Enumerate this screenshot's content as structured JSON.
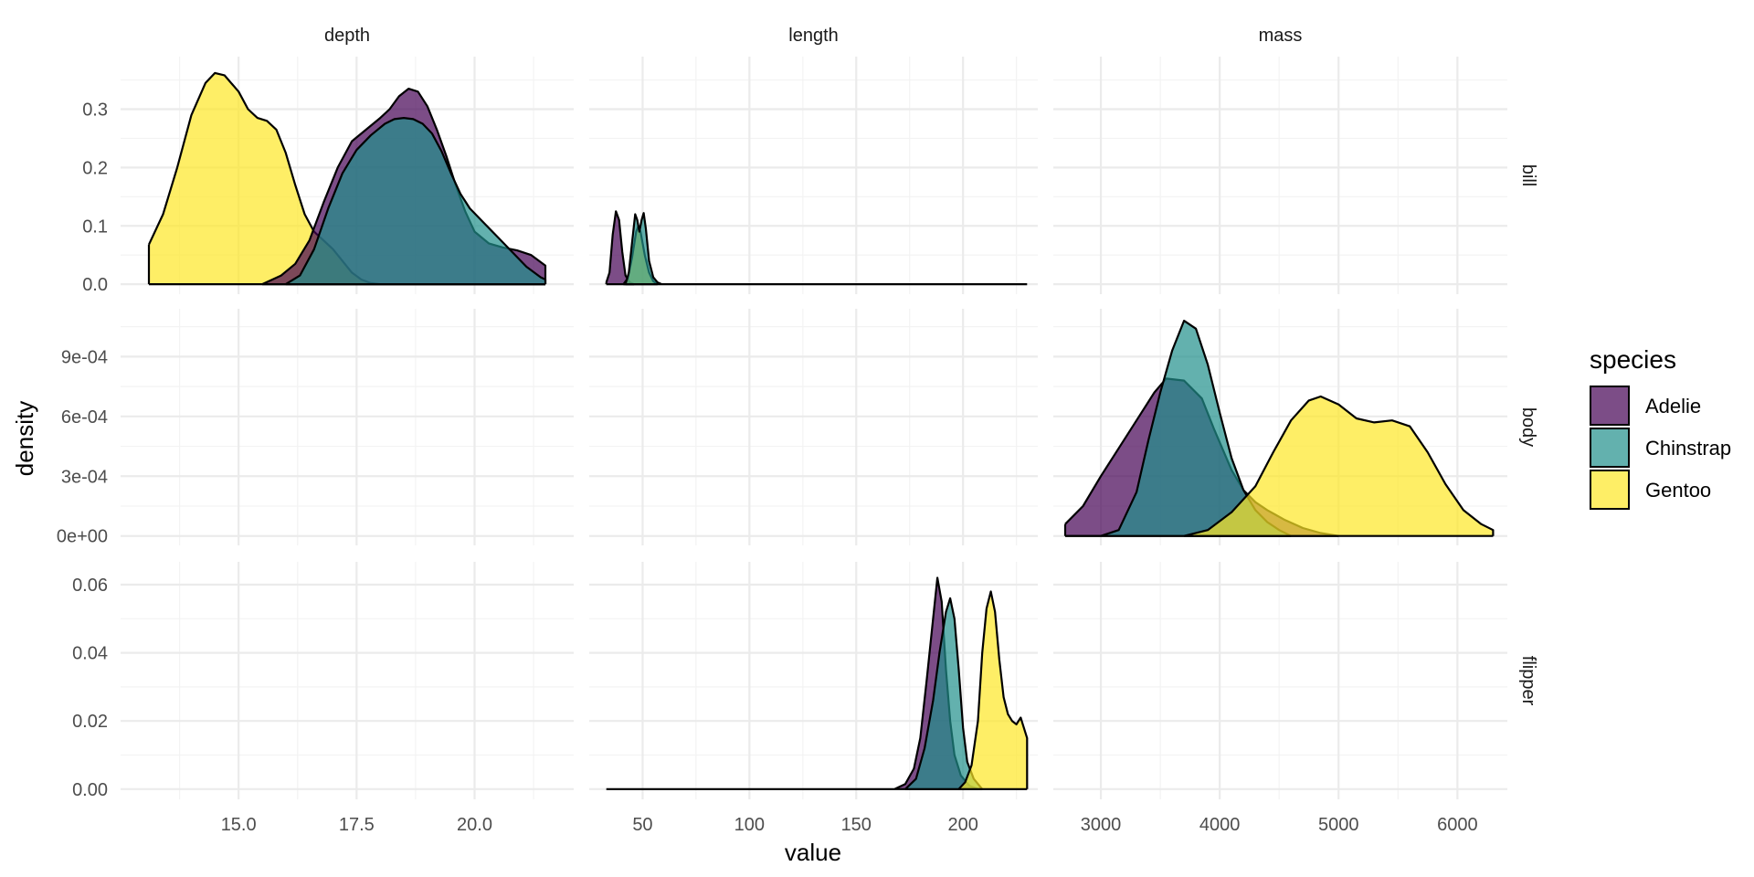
{
  "chart_data": {
    "type": "area",
    "subtype": "faceted density plot",
    "xlabel": "value",
    "ylabel": "density",
    "facet_columns": [
      "depth",
      "length",
      "mass"
    ],
    "facet_rows": [
      "bill",
      "body",
      "flipper"
    ],
    "colors": {
      "Adelie": "#440154",
      "Chinstrap": "#21908C",
      "Gentoo": "#FDE725"
    },
    "fill_alpha": 0.7,
    "x_axes": {
      "depth": {
        "range": [
          12.5,
          22.1
        ],
        "ticks": [
          15.0,
          17.5,
          20.0
        ],
        "tick_labels": [
          "15.0",
          "17.5",
          "20.0"
        ]
      },
      "length": {
        "range": [
          25,
          235
        ],
        "ticks": [
          50,
          100,
          150,
          200
        ],
        "tick_labels": [
          "50",
          "100",
          "150",
          "200"
        ]
      },
      "mass": {
        "range": [
          2600,
          6420
        ],
        "ticks": [
          3000,
          4000,
          5000,
          6000
        ],
        "tick_labels": [
          "3000",
          "4000",
          "5000",
          "6000"
        ]
      }
    },
    "y_axes": {
      "bill": {
        "range": [
          -0.017,
          0.39
        ],
        "ticks": [
          0,
          0.1,
          0.2,
          0.3
        ],
        "tick_labels": [
          "0.0",
          "0.1",
          "0.2",
          "0.3"
        ]
      },
      "body": {
        "range": [
          -4.7e-05,
          0.00114
        ],
        "ticks": [
          0,
          0.0003,
          0.0006,
          0.0009
        ],
        "tick_labels": [
          "0e+00",
          "3e-04",
          "6e-04",
          "9e-04"
        ]
      },
      "flipper": {
        "range": [
          -0.003,
          0.0667
        ],
        "ticks": [
          0,
          0.02,
          0.04,
          0.06
        ],
        "tick_labels": [
          "0.00",
          "0.02",
          "0.04",
          "0.06"
        ]
      }
    },
    "panels": [
      {
        "row": "bill",
        "col": "depth",
        "series": [
          {
            "name": "Gentoo",
            "points": [
              [
                13.1,
                0.068
              ],
              [
                13.4,
                0.12
              ],
              [
                13.7,
                0.2
              ],
              [
                14.0,
                0.29
              ],
              [
                14.3,
                0.345
              ],
              [
                14.5,
                0.362
              ],
              [
                14.7,
                0.358
              ],
              [
                15.0,
                0.33
              ],
              [
                15.2,
                0.3
              ],
              [
                15.4,
                0.285
              ],
              [
                15.6,
                0.28
              ],
              [
                15.8,
                0.265
              ],
              [
                16.0,
                0.225
              ],
              [
                16.2,
                0.17
              ],
              [
                16.4,
                0.12
              ],
              [
                16.6,
                0.09
              ],
              [
                16.8,
                0.075
              ],
              [
                17.0,
                0.06
              ],
              [
                17.2,
                0.04
              ],
              [
                17.4,
                0.02
              ],
              [
                17.6,
                0.008
              ],
              [
                17.8,
                0.002
              ],
              [
                18.0,
                0.0
              ],
              [
                19.0,
                0.0
              ],
              [
                20.0,
                0.0
              ],
              [
                21.5,
                0.0
              ]
            ]
          },
          {
            "name": "Adelie",
            "points": [
              [
                15.5,
                0.0
              ],
              [
                15.9,
                0.015
              ],
              [
                16.2,
                0.035
              ],
              [
                16.5,
                0.075
              ],
              [
                16.8,
                0.14
              ],
              [
                17.1,
                0.2
              ],
              [
                17.4,
                0.245
              ],
              [
                17.7,
                0.265
              ],
              [
                18.0,
                0.285
              ],
              [
                18.2,
                0.3
              ],
              [
                18.4,
                0.322
              ],
              [
                18.6,
                0.335
              ],
              [
                18.8,
                0.33
              ],
              [
                19.0,
                0.305
              ],
              [
                19.2,
                0.265
              ],
              [
                19.4,
                0.22
              ],
              [
                19.6,
                0.17
              ],
              [
                19.8,
                0.125
              ],
              [
                20.0,
                0.09
              ],
              [
                20.3,
                0.07
              ],
              [
                20.6,
                0.063
              ],
              [
                20.9,
                0.058
              ],
              [
                21.2,
                0.05
              ],
              [
                21.5,
                0.032
              ]
            ]
          },
          {
            "name": "Chinstrap",
            "points": [
              [
                16.0,
                0.0
              ],
              [
                16.3,
                0.015
              ],
              [
                16.6,
                0.06
              ],
              [
                16.9,
                0.13
              ],
              [
                17.2,
                0.19
              ],
              [
                17.5,
                0.23
              ],
              [
                17.8,
                0.255
              ],
              [
                18.1,
                0.275
              ],
              [
                18.3,
                0.283
              ],
              [
                18.5,
                0.285
              ],
              [
                18.7,
                0.283
              ],
              [
                18.9,
                0.275
              ],
              [
                19.1,
                0.258
              ],
              [
                19.3,
                0.228
              ],
              [
                19.5,
                0.19
              ],
              [
                19.7,
                0.155
              ],
              [
                19.9,
                0.13
              ],
              [
                20.2,
                0.105
              ],
              [
                20.5,
                0.08
              ],
              [
                20.8,
                0.055
              ],
              [
                21.1,
                0.03
              ],
              [
                21.4,
                0.012
              ],
              [
                21.5,
                0.008
              ]
            ]
          }
        ]
      },
      {
        "row": "bill",
        "col": "length",
        "series": [
          {
            "name": "Adelie",
            "points": [
              [
                33,
                0.003
              ],
              [
                34.5,
                0.02
              ],
              [
                36,
                0.085
              ],
              [
                37.5,
                0.125
              ],
              [
                39,
                0.11
              ],
              [
                40.5,
                0.055
              ],
              [
                42,
                0.015
              ],
              [
                44,
                0.003
              ],
              [
                46,
                0.0
              ]
            ]
          },
          {
            "name": "Gentoo",
            "points": [
              [
                41,
                0.0
              ],
              [
                43,
                0.01
              ],
              [
                45,
                0.045
              ],
              [
                47,
                0.09
              ],
              [
                48,
                0.1
              ],
              [
                49,
                0.09
              ],
              [
                51,
                0.05
              ],
              [
                53,
                0.02
              ],
              [
                55,
                0.005
              ],
              [
                57,
                0.0
              ]
            ]
          },
          {
            "name": "Chinstrap",
            "points": [
              [
                42,
                0.0
              ],
              [
                43.5,
                0.02
              ],
              [
                45,
                0.07
              ],
              [
                46.5,
                0.12
              ],
              [
                47.5,
                0.11
              ],
              [
                48.5,
                0.09
              ],
              [
                49.5,
                0.11
              ],
              [
                50.5,
                0.122
              ],
              [
                51.5,
                0.095
              ],
              [
                53,
                0.04
              ],
              [
                55,
                0.012
              ],
              [
                57,
                0.003
              ],
              [
                59,
                0.0
              ],
              [
                230,
                0.0
              ]
            ]
          }
        ]
      },
      {
        "row": "body",
        "col": "mass",
        "series": [
          {
            "name": "Adelie",
            "points": [
              [
                2700,
                6e-05
              ],
              [
                2850,
                0.00015
              ],
              [
                3000,
                0.0003
              ],
              [
                3150,
                0.00044
              ],
              [
                3300,
                0.00058
              ],
              [
                3450,
                0.00072
              ],
              [
                3550,
                0.00079
              ],
              [
                3700,
                0.00078
              ],
              [
                3850,
                0.00069
              ],
              [
                3950,
                0.00054
              ],
              [
                4100,
                0.00033
              ],
              [
                4200,
                0.00023
              ],
              [
                4300,
                0.00017
              ],
              [
                4400,
                0.00013
              ],
              [
                4550,
                8e-05
              ],
              [
                4700,
                4e-05
              ],
              [
                4850,
                1.5e-05
              ],
              [
                5000,
                0.0
              ]
            ]
          },
          {
            "name": "Chinstrap",
            "points": [
              [
                2700,
                0.0
              ],
              [
                3000,
                0.0
              ],
              [
                3150,
                3e-05
              ],
              [
                3300,
                0.00022
              ],
              [
                3400,
                0.00048
              ],
              [
                3500,
                0.00072
              ],
              [
                3600,
                0.00093
              ],
              [
                3700,
                0.00108
              ],
              [
                3800,
                0.00104
              ],
              [
                3900,
                0.00086
              ],
              [
                4000,
                0.00062
              ],
              [
                4100,
                0.00039
              ],
              [
                4200,
                0.00023
              ],
              [
                4300,
                0.00013
              ],
              [
                4400,
                7e-05
              ],
              [
                4500,
                3e-05
              ],
              [
                4600,
                0.0
              ]
            ]
          },
          {
            "name": "Gentoo",
            "points": [
              [
                3700,
                0.0
              ],
              [
                3900,
                3e-05
              ],
              [
                4100,
                0.00012
              ],
              [
                4300,
                0.00025
              ],
              [
                4450,
                0.00042
              ],
              [
                4600,
                0.00058
              ],
              [
                4750,
                0.00068
              ],
              [
                4850,
                0.0007
              ],
              [
                5000,
                0.00066
              ],
              [
                5150,
                0.00059
              ],
              [
                5300,
                0.00057
              ],
              [
                5450,
                0.00058
              ],
              [
                5600,
                0.00055
              ],
              [
                5750,
                0.00042
              ],
              [
                5900,
                0.00026
              ],
              [
                6050,
                0.00013
              ],
              [
                6200,
                6e-05
              ],
              [
                6300,
                3e-05
              ]
            ]
          }
        ]
      },
      {
        "row": "flipper",
        "col": "length",
        "series": [
          {
            "name": "Adelie",
            "points": [
              [
                33,
                0.0
              ],
              [
                150,
                0.0
              ],
              [
                168,
                0.0
              ],
              [
                173,
                0.0015
              ],
              [
                177,
                0.006
              ],
              [
                180,
                0.015
              ],
              [
                183,
                0.032
              ],
              [
                186,
                0.05
              ],
              [
                188,
                0.062
              ],
              [
                190,
                0.055
              ],
              [
                192,
                0.035
              ],
              [
                194,
                0.02
              ],
              [
                196,
                0.01
              ],
              [
                199,
                0.004
              ],
              [
                203,
                0.001
              ],
              [
                207,
                0.0
              ]
            ]
          },
          {
            "name": "Chinstrap",
            "points": [
              [
                173,
                0.0
              ],
              [
                178,
                0.003
              ],
              [
                182,
                0.012
              ],
              [
                186,
                0.026
              ],
              [
                189,
                0.04
              ],
              [
                192,
                0.052
              ],
              [
                194,
                0.056
              ],
              [
                196,
                0.05
              ],
              [
                198,
                0.035
              ],
              [
                200,
                0.018
              ],
              [
                202,
                0.008
              ],
              [
                205,
                0.003
              ],
              [
                209,
                0.0
              ]
            ]
          },
          {
            "name": "Gentoo",
            "points": [
              [
                198,
                0.0
              ],
              [
                201,
                0.002
              ],
              [
                204,
                0.007
              ],
              [
                207,
                0.02
              ],
              [
                209,
                0.04
              ],
              [
                211,
                0.053
              ],
              [
                213,
                0.058
              ],
              [
                215,
                0.052
              ],
              [
                217,
                0.038
              ],
              [
                219,
                0.027
              ],
              [
                221,
                0.022
              ],
              [
                223,
                0.02
              ],
              [
                225,
                0.019
              ],
              [
                227,
                0.021
              ],
              [
                228,
                0.019
              ],
              [
                230,
                0.015
              ]
            ]
          }
        ]
      }
    ],
    "legend": {
      "title": "species",
      "position": "right",
      "entries": [
        "Adelie",
        "Chinstrap",
        "Gentoo"
      ]
    },
    "grid": true
  }
}
